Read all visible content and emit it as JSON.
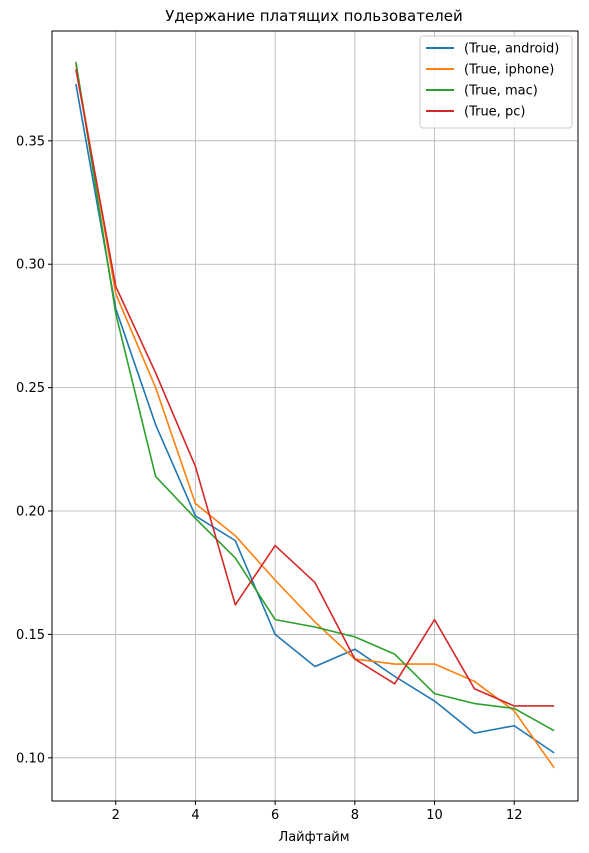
{
  "chart_data": {
    "type": "line",
    "title": "Удержание платящих пользователей",
    "xlabel": "Лайфтайм",
    "ylabel": "",
    "x": [
      1,
      2,
      3,
      4,
      5,
      6,
      7,
      8,
      9,
      10,
      11,
      12,
      13
    ],
    "xlim": [
      0.4,
      13.6
    ],
    "ylim": [
      0.0825,
      0.3945
    ],
    "xticks": [
      2,
      4,
      6,
      8,
      10,
      12
    ],
    "yticks": [
      0.1,
      0.15,
      0.2,
      0.25,
      0.3,
      0.35
    ],
    "ytick_labels": [
      "0.10",
      "0.15",
      "0.20",
      "0.25",
      "0.30",
      "0.35"
    ],
    "grid": true,
    "legend_position": "top-right",
    "series": [
      {
        "name": "(True, android)",
        "color": "#1f77b4",
        "values": [
          0.373,
          0.282,
          0.235,
          0.198,
          0.188,
          0.15,
          0.137,
          0.144,
          0.133,
          0.123,
          0.11,
          0.113,
          0.102
        ]
      },
      {
        "name": "(True, iphone)",
        "color": "#ff7f0e",
        "values": [
          0.381,
          0.288,
          0.25,
          0.203,
          0.19,
          0.172,
          0.155,
          0.14,
          0.138,
          0.138,
          0.131,
          0.119,
          0.096
        ]
      },
      {
        "name": "(True, mac)",
        "color": "#2ca02c",
        "values": [
          0.382,
          0.28,
          0.214,
          0.197,
          0.181,
          0.156,
          0.153,
          0.149,
          0.142,
          0.126,
          0.122,
          0.12,
          0.111
        ]
      },
      {
        "name": "(True, pc)",
        "color": "#d62728",
        "values": [
          0.379,
          0.291,
          0.256,
          0.218,
          0.162,
          0.186,
          0.171,
          0.14,
          0.13,
          0.156,
          0.128,
          0.121,
          0.121
        ]
      }
    ]
  }
}
